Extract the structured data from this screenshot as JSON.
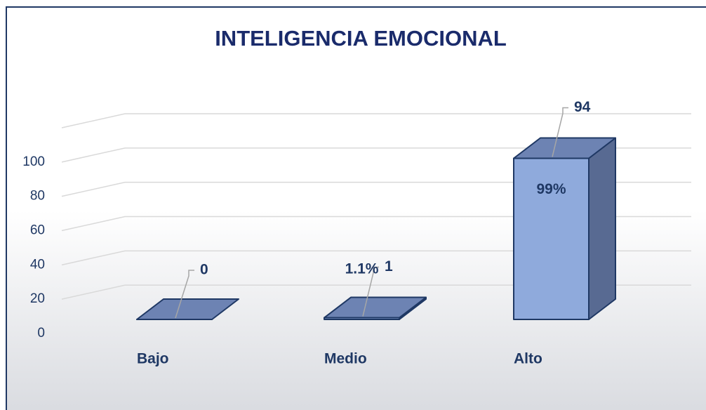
{
  "chart_data": {
    "type": "bar3d",
    "title": "INTELIGENCIA EMOCIONAL",
    "categories": [
      "Bajo",
      "Medio",
      "Alto"
    ],
    "values": [
      0,
      1,
      94
    ],
    "percent_labels": [
      null,
      "1.1%",
      "99%"
    ],
    "color": "#8faadc",
    "ylim": [
      0,
      120
    ],
    "yticks": [
      0,
      20,
      40,
      60,
      80,
      100
    ],
    "grid": true
  }
}
